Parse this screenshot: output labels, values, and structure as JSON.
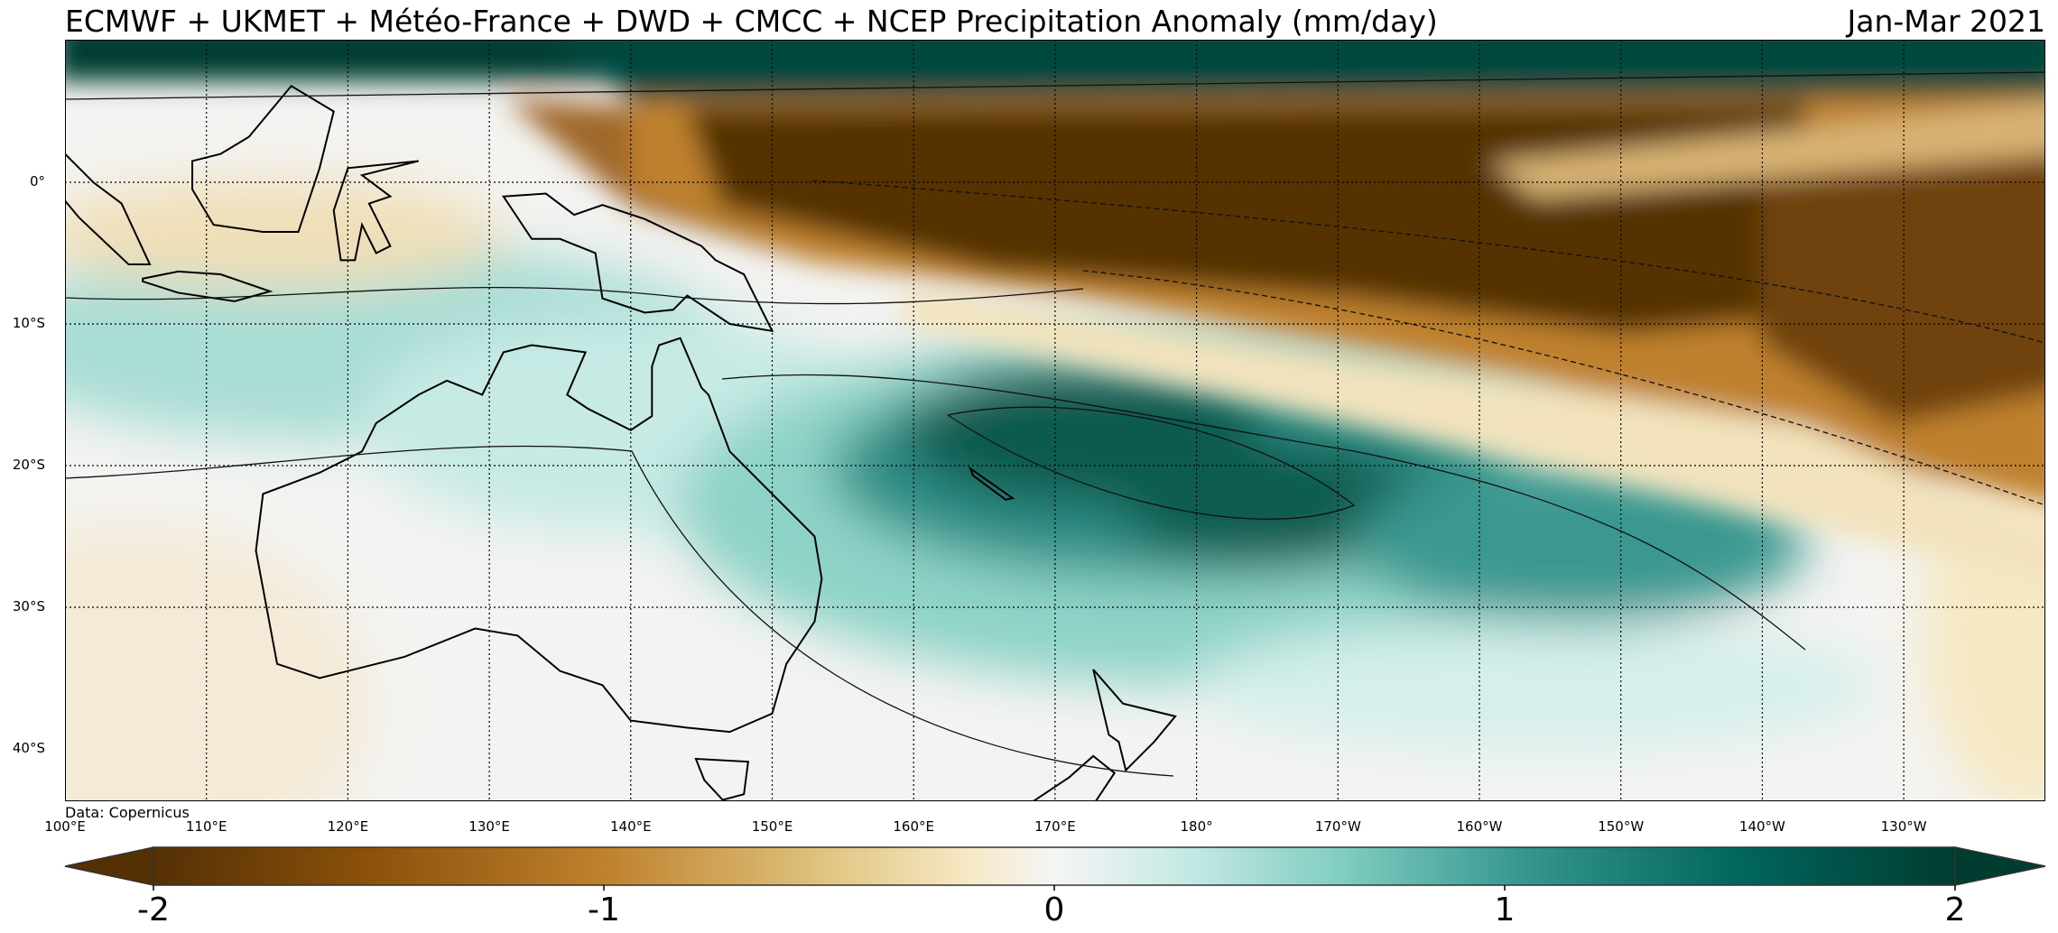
{
  "header": {
    "title": "ECMWF + UKMET + Météo-France + DWD + CMCC + NCEP Precipitation Anomaly (mm/day)",
    "period": "Jan-Mar 2021"
  },
  "map": {
    "lat_labels": [
      "0°",
      "10°S",
      "20°S",
      "30°S",
      "40°S"
    ],
    "lon_labels": [
      "100°E",
      "110°E",
      "120°E",
      "130°E",
      "140°E",
      "150°E",
      "160°E",
      "170°E",
      "180°",
      "170°W",
      "160°W",
      "150°W",
      "140°W",
      "130°W"
    ],
    "source": "Data: Copernicus"
  },
  "colorbar": {
    "min": -2,
    "max": 2,
    "tick_labels": [
      "-2",
      "-1",
      "0",
      "1",
      "2"
    ],
    "colors": {
      "dry_extreme": "#543005",
      "dry": "#bf812d",
      "neutral": "#f5f5f5",
      "wet": "#80cdc1",
      "wet_extreme": "#003c30"
    }
  }
}
